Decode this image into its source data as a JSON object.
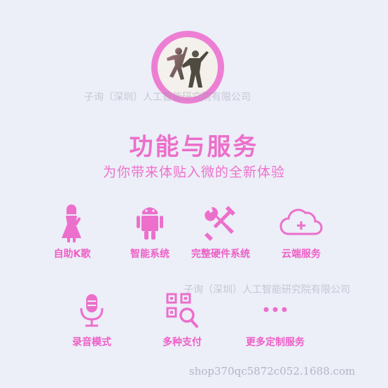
{
  "header": {
    "title": "功能与服务",
    "subtitle": "为你带来体贴入微的全新体验"
  },
  "watermarks": [
    "子询（深圳）人工智能研究院有限公司",
    "子询（深圳）人工智能研究院有限公司",
    "shop370qc5872c052.1688.com"
  ],
  "features": [
    {
      "label": "自助K歌",
      "icon": "singer-icon"
    },
    {
      "label": "智能系统",
      "icon": "robot-icon"
    },
    {
      "label": "完整硬件系统",
      "icon": "tools-icon"
    },
    {
      "label": "云端服务",
      "icon": "cloud-icon"
    },
    {
      "label": "录音模式",
      "icon": "microphone-icon"
    },
    {
      "label": "多种支付",
      "icon": "qr-search-icon"
    },
    {
      "label": "更多定制服务",
      "icon": "more-icon"
    }
  ],
  "colors": {
    "accent": "#ec6fcb",
    "background": "#eceef8",
    "logo_ring": "#ec7fd3"
  }
}
